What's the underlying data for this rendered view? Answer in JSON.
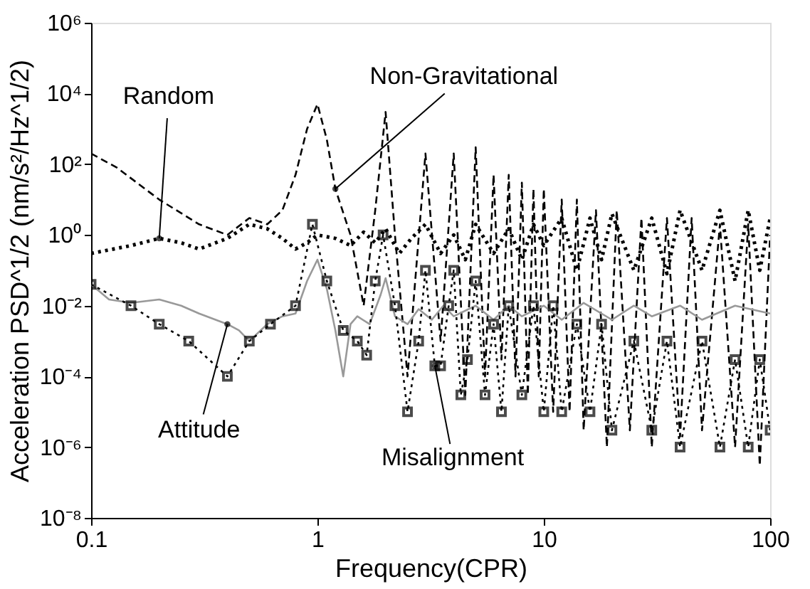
{
  "chart_data": {
    "type": "line",
    "xlabel": "Frequency(CPR)",
    "ylabel": "Acceleration PSD^1/2 (nm/s²/Hz^1/2)",
    "log": "xy",
    "grid": false,
    "xlim": [
      0.1,
      100
    ],
    "xticks": [
      0.1,
      1,
      10,
      100
    ],
    "ylim": [
      1e-08,
      1000000.0
    ],
    "yticks": [
      {
        "value": 1e-08,
        "label": "10⁻⁸"
      },
      {
        "value": 1e-06,
        "label": "10⁻⁶"
      },
      {
        "value": 0.0001,
        "label": "10⁻⁴"
      },
      {
        "value": 0.01,
        "label": "10⁻²"
      },
      {
        "value": 1,
        "label": "10⁰"
      },
      {
        "value": 100,
        "label": "10²"
      },
      {
        "value": 10000,
        "label": "10⁴"
      },
      {
        "value": 1000000,
        "label": "10⁶"
      }
    ],
    "annotations": [
      {
        "text": "Random",
        "x": 0.2,
        "y": 0.8
      },
      {
        "text": "Non-Gravitational",
        "x": 1.2,
        "y": 20
      },
      {
        "text": "Attitude",
        "x": 0.4,
        "y": 0.003
      },
      {
        "text": "Misalignment",
        "x": 3.3,
        "y": 0.0002
      }
    ],
    "series": [
      {
        "color": "#000000",
        "line_style": "dashed",
        "marker": "none",
        "x": [
          0.1,
          0.13,
          0.2,
          0.3,
          0.4,
          0.5,
          0.6,
          0.7,
          0.8,
          0.9,
          1.0,
          1.1,
          1.2,
          1.4,
          1.6,
          1.8,
          2.0,
          2.2,
          2.5,
          3.0,
          3.5,
          4.0,
          4.5,
          5.0,
          5.5,
          6.0,
          6.5,
          7,
          7.5,
          8,
          8.5,
          9,
          9.5,
          10,
          11,
          12,
          13,
          14,
          15,
          17,
          19,
          21,
          24,
          27,
          30,
          35,
          40,
          45,
          50,
          60,
          70,
          80,
          90,
          100
        ],
        "values": [
          200,
          80,
          10,
          2,
          1,
          3,
          2,
          5,
          50,
          1000,
          5000,
          500,
          20,
          1,
          0.01,
          5,
          3000,
          1,
          0.0001,
          200,
          0.001,
          200,
          3e-05,
          300,
          0.0001,
          50,
          0.0003,
          50,
          0.0001,
          30,
          3e-05,
          20,
          0.0001,
          20,
          1e-05,
          10,
          1e-05,
          10,
          3e-06,
          5,
          1e-06,
          5,
          3e-06,
          3,
          1e-06,
          3,
          2e-06,
          3,
          3e-06,
          2,
          1e-06,
          2,
          3e-07,
          1
        ]
      },
      {
        "color": "#000000",
        "line_style": "dotted",
        "marker": "none",
        "x": [
          0.1,
          0.15,
          0.2,
          0.25,
          0.3,
          0.4,
          0.5,
          0.6,
          0.7,
          0.8,
          0.9,
          1.0,
          1.2,
          1.4,
          1.6,
          1.8,
          2.0,
          2.3,
          2.6,
          3,
          3.5,
          4,
          4.5,
          5,
          6,
          7,
          8,
          9,
          10,
          12,
          14,
          16,
          18,
          20,
          25,
          30,
          35,
          40,
          50,
          60,
          70,
          80,
          90,
          100
        ],
        "values": [
          0.3,
          0.5,
          0.8,
          0.6,
          0.4,
          0.8,
          2,
          1.5,
          0.8,
          0.4,
          0.6,
          1,
          0.8,
          0.5,
          1.2,
          0.6,
          1.5,
          0.3,
          0.8,
          2,
          0.3,
          1,
          0.2,
          2,
          0.3,
          1.5,
          0.2,
          2,
          0.5,
          3,
          0.1,
          3,
          0.2,
          4,
          0.1,
          3,
          0.08,
          5,
          0.1,
          5,
          0.05,
          5,
          0.1,
          3
        ]
      },
      {
        "color": "#999999",
        "line_style": "solid",
        "marker": "none",
        "x": [
          0.1,
          0.12,
          0.15,
          0.2,
          0.25,
          0.3,
          0.4,
          0.45,
          0.5,
          0.6,
          0.7,
          0.8,
          0.9,
          1.0,
          1.1,
          1.2,
          1.3,
          1.4,
          1.5,
          1.7,
          1.9,
          2.0,
          2.2,
          2.5,
          2.8,
          3.2,
          3.6,
          4,
          5,
          6,
          7,
          8,
          10,
          12,
          15,
          20,
          25,
          30,
          40,
          50,
          70,
          100
        ],
        "values": [
          0.04,
          0.015,
          0.012,
          0.015,
          0.01,
          0.006,
          0.003,
          0.002,
          0.001,
          0.003,
          0.005,
          0.006,
          0.05,
          0.2,
          0.03,
          0.002,
          0.0001,
          0.003,
          0.005,
          0.003,
          0.02,
          0.06,
          0.005,
          0.003,
          0.008,
          0.004,
          0.01,
          0.005,
          0.01,
          0.004,
          0.01,
          0.005,
          0.01,
          0.004,
          0.012,
          0.004,
          0.01,
          0.005,
          0.01,
          0.004,
          0.01,
          0.006
        ]
      },
      {
        "color": "#000000",
        "line_style": "dotted",
        "marker": "square",
        "x": [
          0.1,
          0.15,
          0.2,
          0.27,
          0.4,
          0.5,
          0.62,
          0.8,
          0.95,
          1.1,
          1.3,
          1.5,
          1.65,
          1.8,
          1.95,
          2.2,
          2.5,
          2.8,
          3.0,
          3.3,
          3.5,
          3.8,
          4.0,
          4.3,
          4.6,
          5.0,
          5.5,
          6,
          6.5,
          7,
          8,
          9,
          10,
          11,
          12,
          14,
          16,
          18,
          20,
          25,
          30,
          35,
          40,
          50,
          60,
          70,
          80,
          90,
          100
        ],
        "values": [
          0.04,
          0.01,
          0.003,
          0.001,
          0.0001,
          0.001,
          0.003,
          0.01,
          2,
          0.05,
          0.002,
          0.001,
          0.0004,
          0.05,
          1,
          0.01,
          1e-05,
          0.001,
          0.1,
          0.0002,
          0.0002,
          0.01,
          0.1,
          3e-05,
          0.0003,
          0.05,
          3e-05,
          0.003,
          1e-05,
          0.01,
          3e-05,
          0.01,
          1e-05,
          0.01,
          1e-05,
          0.003,
          1e-05,
          0.003,
          3e-06,
          0.001,
          3e-06,
          0.001,
          1e-06,
          0.001,
          1e-06,
          0.0003,
          1e-06,
          0.0003,
          3e-06
        ]
      }
    ]
  }
}
